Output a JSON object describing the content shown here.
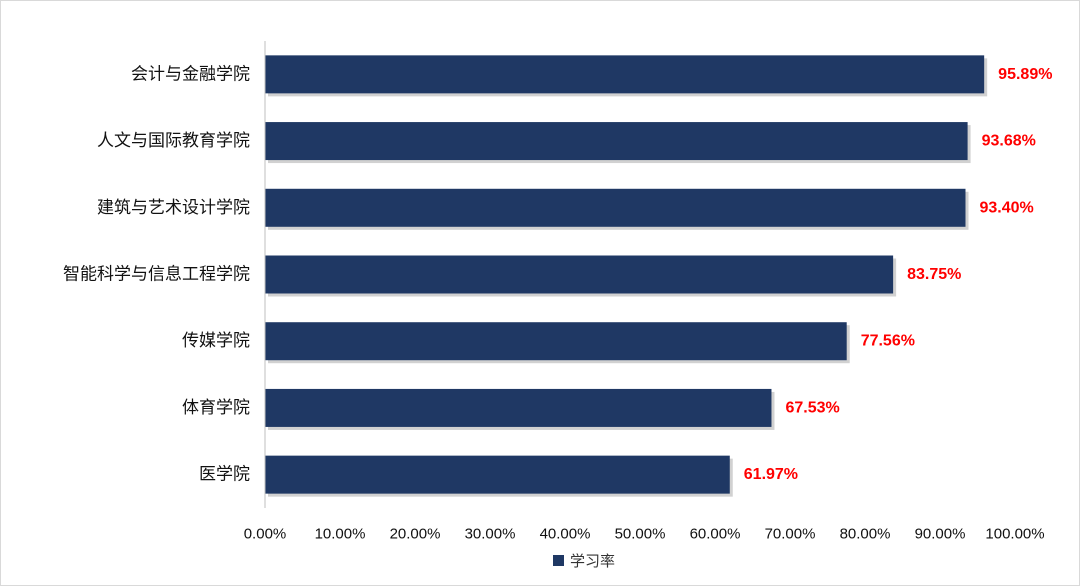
{
  "chart_data": {
    "type": "bar",
    "orientation": "horizontal",
    "categories": [
      "会计与金融学院",
      "人文与国际教育学院",
      "建筑与艺术设计学院",
      "智能科学与信息工程学院",
      "传媒学院",
      "体育学院",
      "医学院"
    ],
    "series": [
      {
        "name": "学习率",
        "values": [
          95.89,
          93.68,
          93.4,
          83.75,
          77.56,
          67.53,
          61.97
        ],
        "labels": [
          "95.89%",
          "93.68%",
          "93.40%",
          "83.75%",
          "77.56%",
          "67.53%",
          "61.97%"
        ]
      }
    ],
    "xlim": [
      0,
      100
    ],
    "x_ticks": [
      "0.00%",
      "10.00%",
      "20.00%",
      "30.00%",
      "40.00%",
      "50.00%",
      "60.00%",
      "70.00%",
      "80.00%",
      "90.00%",
      "100.00%"
    ],
    "legend": "bottom",
    "grid": false,
    "colors": {
      "bar": "#1f3864",
      "value_label": "#ff0000"
    }
  }
}
